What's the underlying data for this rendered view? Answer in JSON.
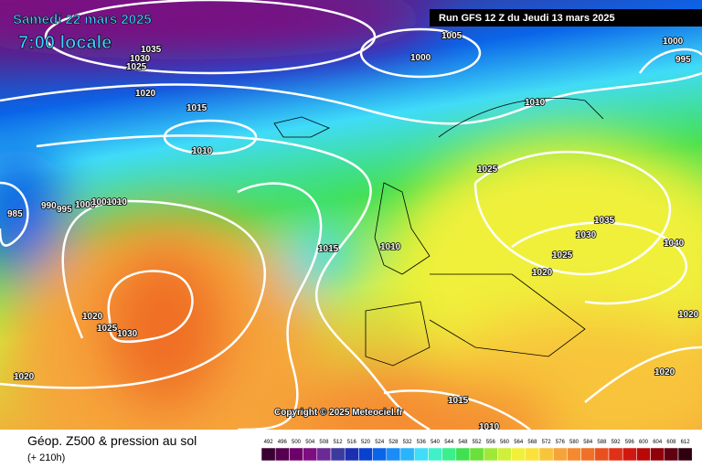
{
  "header": {
    "date": "Samedi 22 mars 2025",
    "time": "7:00 locale",
    "run": "Run GFS 12 Z du Jeudi 13 mars 2025"
  },
  "isobar_labels": [
    "1035",
    "1030",
    "1025",
    "1020",
    "1015",
    "1010",
    "1005",
    "1000",
    "1000",
    "995",
    "1010",
    "1025",
    "1035",
    "1030",
    "1025",
    "1020",
    "1040",
    "985",
    "990",
    "995",
    "1000",
    "1001010",
    "1015",
    "1010",
    "1020",
    "1025",
    "1030",
    "1020",
    "1020",
    "1020",
    "1015",
    "1010"
  ],
  "copyright": "Copyright © 2025 Meteociel.fr",
  "footer": {
    "title": "Géop. Z500 & pression au sol",
    "lead": "(+ 210h)"
  },
  "legend": {
    "labels": [
      "492",
      "496",
      "500",
      "504",
      "508",
      "512",
      "516",
      "520",
      "524",
      "528",
      "532",
      "536",
      "540",
      "544",
      "548",
      "552",
      "556",
      "560",
      "564",
      "568",
      "572",
      "576",
      "580",
      "584",
      "588",
      "592",
      "596",
      "600",
      "604",
      "608",
      "612"
    ],
    "colors": [
      "#3a0033",
      "#55004f",
      "#6d006a",
      "#7d0d80",
      "#6b2a96",
      "#3b3a9e",
      "#1c2fb0",
      "#0a40d0",
      "#0a64e8",
      "#1a8cf5",
      "#2ab4fa",
      "#40dcf8",
      "#40f0c8",
      "#3af08c",
      "#40e050",
      "#6ae03a",
      "#a0e838",
      "#cfef3a",
      "#f0f03a",
      "#fae23a",
      "#f8c43a",
      "#f6a43a",
      "#f48a30",
      "#f07028",
      "#e85020",
      "#e03018",
      "#d01810",
      "#b80808",
      "#900008",
      "#600010",
      "#300010"
    ]
  }
}
